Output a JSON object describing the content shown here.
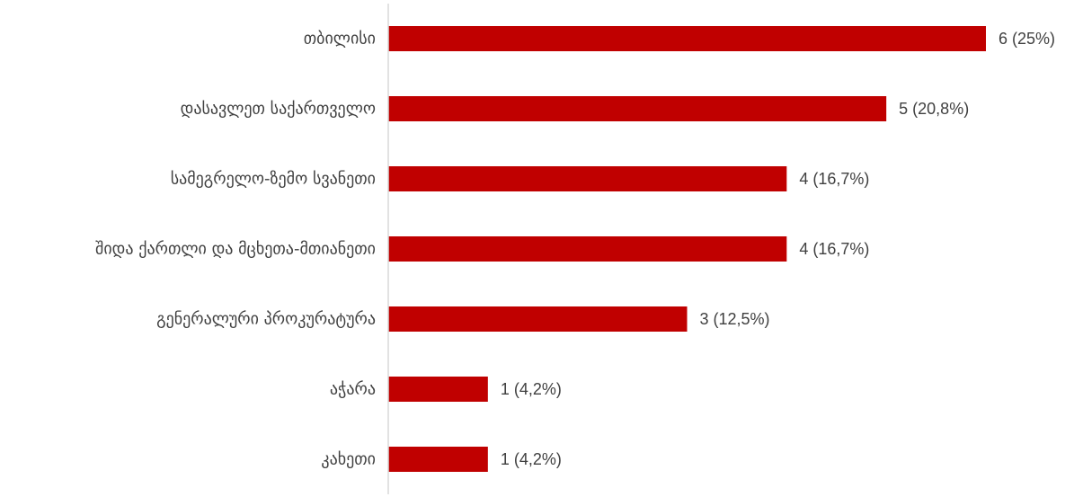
{
  "chart_data": {
    "type": "bar",
    "orientation": "horizontal",
    "categories": [
      "თბილისი",
      "დასავლეთ საქართველო",
      "სამეგრელო-ზემო სვანეთი",
      "შიდა ქართლი და მცხეთა-მთიანეთი",
      "გენერალური პროკურატურა",
      "აჭარა",
      "კახეთი"
    ],
    "values": [
      6,
      5,
      4,
      4,
      3,
      1,
      1
    ],
    "data_labels": [
      "6 (25%)",
      "5 (20,8%)",
      "4 (16,7%)",
      "4 (16,7%)",
      "3 (12,5%)",
      "1 (4,2%)",
      "1 (4,2%)"
    ],
    "xlim": [
      0,
      6
    ],
    "grid": false,
    "legend": "none",
    "bar_color": "#C00000",
    "axis_color": "#D9D9D9"
  }
}
